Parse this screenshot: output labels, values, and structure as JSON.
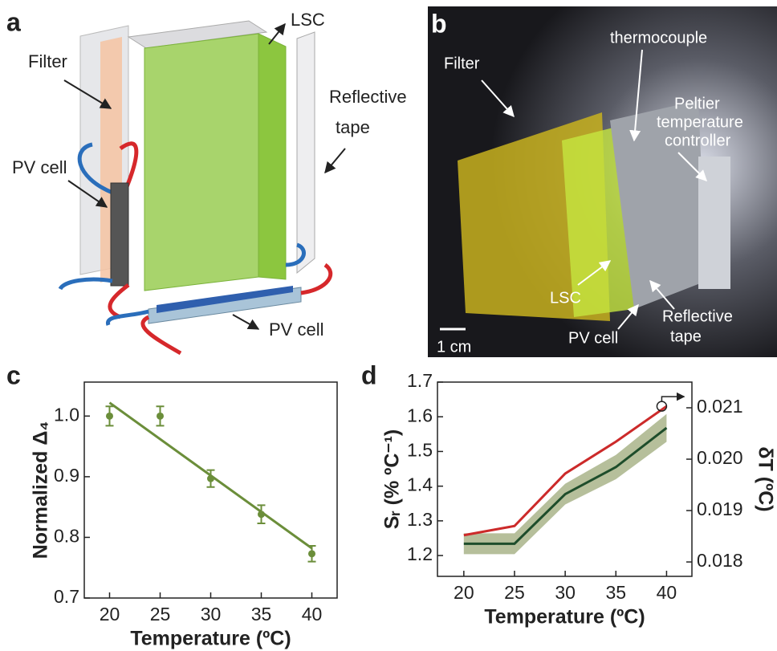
{
  "panel_a": {
    "label": "a",
    "annotations": [
      "Filter",
      "LSC",
      "Reflective",
      "tape",
      "PV cell",
      "PV cell"
    ]
  },
  "panel_b": {
    "label": "b",
    "annotations": [
      "Filter",
      "thermocouple",
      "Peltier",
      "temperature",
      "controller",
      "LSC",
      "PV cell",
      "Reflective",
      "tape",
      "1 cm"
    ]
  },
  "chart_data": [
    {
      "type": "scatter",
      "panel_label": "c",
      "x_label": "Temperature (ºC)",
      "y_label": "Normalized Δ₄",
      "x": [
        20,
        25,
        30,
        35,
        40
      ],
      "series": [
        {
          "color": "#6b8e3a",
          "values": [
            1.0,
            1.0,
            0.897,
            0.838,
            0.773
          ],
          "errors": [
            0.016,
            0.016,
            0.014,
            0.015,
            0.013
          ]
        }
      ],
      "fit": {
        "color": "#6b8e3a",
        "x": [
          20,
          40
        ],
        "values": [
          1.022,
          0.782
        ]
      },
      "xlim": [
        17.5,
        42.5
      ],
      "ylim": [
        0.7,
        1.056
      ],
      "xticks": [
        20,
        25,
        30,
        35,
        40
      ],
      "yticks": [
        0.7,
        0.8,
        0.9,
        {
          "value": 1,
          "label": "1.0"
        }
      ]
    },
    {
      "type": "line",
      "panel_label": "d",
      "x_label": "Temperature (ºC)",
      "y_label": "Sᵣ (% ºC⁻¹)",
      "y2_label": "δT (ºC)",
      "x": [
        20,
        25,
        30,
        35,
        40
      ],
      "series": [
        {
          "color": "#1e4d2b",
          "band_color": "#a9b48a",
          "values": [
            1.234,
            1.234,
            1.377,
            1.455,
            1.568
          ],
          "errors": [
            0.03,
            0.03,
            0.03,
            0.035,
            0.04
          ]
        },
        {
          "color": "#cc2a2a",
          "axis": "y2",
          "values": [
            0.01852,
            0.0187,
            0.01972,
            0.02034,
            0.02103
          ]
        }
      ],
      "xlim": [
        17.4,
        42.5
      ],
      "ylim": [
        1.14,
        1.7
      ],
      "y2lim": [
        0.01772,
        0.0215
      ],
      "xticks": [
        20,
        25,
        30,
        35,
        40
      ],
      "yticks": [
        1.2,
        1.3,
        1.4,
        1.5,
        1.6,
        1.7
      ],
      "y2ticks": [
        0.018,
        0.019,
        {
          "value": 0.02,
          "label": "0.020"
        },
        0.021
      ]
    }
  ]
}
